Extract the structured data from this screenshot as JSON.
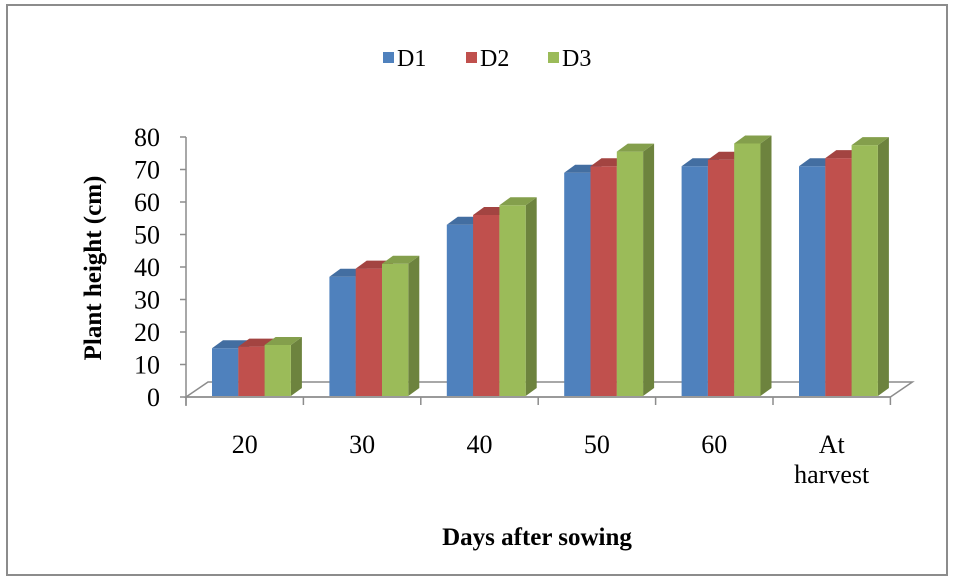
{
  "chart_data": {
    "type": "bar",
    "style": "3d-clustered-column",
    "categories": [
      "20",
      "30",
      "40",
      "50",
      "60",
      "At harvest"
    ],
    "category_lines": [
      [
        "20"
      ],
      [
        "30"
      ],
      [
        "40"
      ],
      [
        "50"
      ],
      [
        "60"
      ],
      [
        "At",
        "harvest"
      ]
    ],
    "series": [
      {
        "name": "D1",
        "color": "#4f81bd",
        "values": [
          15,
          37,
          53,
          69,
          71,
          71
        ]
      },
      {
        "name": "D2",
        "color": "#c0504d",
        "values": [
          15.5,
          39.5,
          56,
          71,
          73,
          73.5
        ]
      },
      {
        "name": "D3",
        "color": "#9bbb59",
        "values": [
          16,
          41,
          59,
          75.5,
          78,
          77.5
        ]
      }
    ],
    "ylabel": "Plant height (cm)",
    "xlabel": "Days after sowing",
    "ylim": [
      0,
      80
    ],
    "yticks": [
      0,
      10,
      20,
      30,
      40,
      50,
      60,
      70,
      80
    ],
    "legend_position": "top",
    "grid": false
  }
}
